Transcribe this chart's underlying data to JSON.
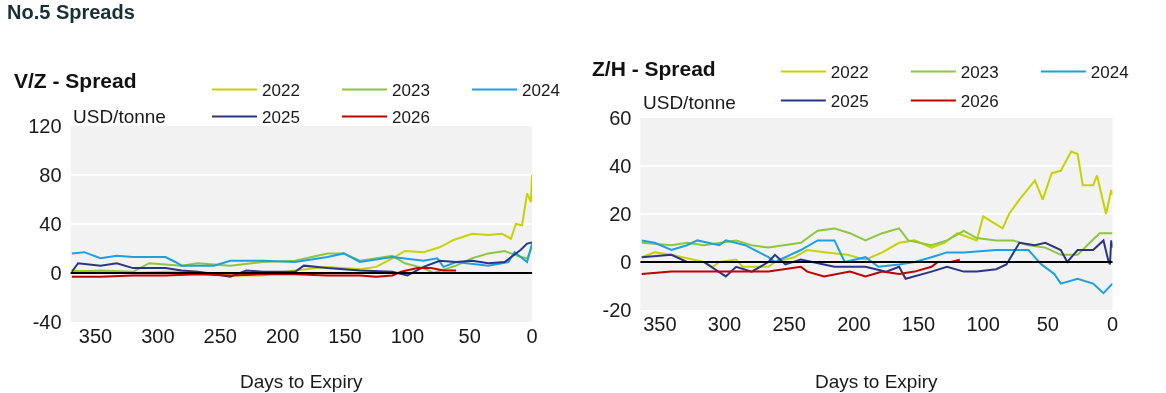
{
  "chart_data": [
    {
      "type": "line",
      "title": "V/Z - Spread",
      "ylabel": "USD/tonne",
      "xlabel": "Days to Expiry",
      "annotations": [
        "No.5 Spreads"
      ],
      "xlim": [
        370,
        0
      ],
      "xticks": [
        350,
        300,
        250,
        200,
        150,
        100,
        50,
        0
      ],
      "ylim": [
        -40,
        120
      ],
      "yticks": [
        120,
        80,
        40,
        0,
        -40
      ],
      "grid": "y",
      "legend": "top",
      "marker": "none",
      "line_style": "solid",
      "ref_lines": [
        {
          "axis": "y",
          "value": 0,
          "color": "#000000"
        }
      ],
      "series": [
        {
          "name": "2022",
          "color": "#c5d300",
          "x": [
            369,
            346,
            320,
            294,
            268,
            242,
            216,
            190,
            164,
            138,
            125,
            112,
            102,
            87,
            74,
            63,
            48,
            35,
            24,
            17,
            13,
            8,
            4,
            1,
            0
          ],
          "values": [
            2,
            1,
            0,
            1,
            1,
            -2,
            -2,
            2,
            5,
            3,
            5,
            12,
            18,
            17,
            21,
            27,
            32,
            31,
            32,
            28,
            40,
            39,
            65,
            58,
            80
          ]
        },
        {
          "name": "2023",
          "color": "#8dc63f",
          "x": [
            369,
            346,
            320,
            307,
            281,
            268,
            242,
            216,
            190,
            164,
            151,
            138,
            112,
            102,
            87,
            79,
            61,
            48,
            35,
            22,
            9,
            4,
            0
          ],
          "values": [
            1,
            2,
            1,
            8,
            6,
            8,
            6,
            9,
            10,
            16,
            16,
            10,
            14,
            8,
            4,
            0,
            6,
            12,
            16,
            18,
            13,
            12,
            21
          ]
        },
        {
          "name": "2024",
          "color": "#1ba1e2",
          "x": [
            369,
            359,
            346,
            333,
            320,
            294,
            286,
            281,
            255,
            242,
            216,
            190,
            164,
            151,
            138,
            112,
            87,
            76,
            71,
            61,
            35,
            19,
            14,
            4,
            0
          ],
          "values": [
            16,
            17,
            12,
            14,
            13,
            13,
            9,
            6,
            6,
            10,
            10,
            9,
            13,
            16,
            9,
            13,
            10,
            12,
            5,
            9,
            6,
            9,
            17,
            9,
            24
          ]
        },
        {
          "name": "2025",
          "color": "#2b3583",
          "x": [
            369,
            364,
            346,
            333,
            320,
            294,
            281,
            268,
            242,
            229,
            216,
            190,
            183,
            164,
            138,
            112,
            100,
            87,
            74,
            61,
            48,
            35,
            22,
            9,
            4,
            0
          ],
          "values": [
            1,
            8,
            6,
            8,
            4,
            4,
            2,
            1,
            -3,
            2,
            1,
            1,
            6,
            4,
            2,
            1,
            -2,
            5,
            10,
            9,
            10,
            8,
            9,
            19,
            24,
            25
          ]
        },
        {
          "name": "2026",
          "color": "#c00000",
          "x": [
            369,
            346,
            320,
            294,
            268,
            242,
            216,
            190,
            164,
            138,
            125,
            112,
            105,
            92,
            81,
            71,
            61
          ],
          "values": [
            -3,
            -3,
            -2,
            -2,
            -1,
            -2,
            -1,
            -1,
            -2,
            -2,
            -3,
            -2,
            1,
            4,
            4,
            2,
            2
          ]
        }
      ]
    },
    {
      "type": "line",
      "title": "Z/H - Spread",
      "ylabel": "USD/tonne",
      "xlabel": "Days to Expiry",
      "xlim": [
        365,
        0
      ],
      "xticks": [
        350,
        300,
        250,
        200,
        150,
        100,
        50,
        0
      ],
      "ylim": [
        -20,
        60
      ],
      "yticks": [
        60,
        40,
        20,
        0,
        -20
      ],
      "grid": "y",
      "legend": "top",
      "marker": "none",
      "line_style": "solid",
      "ref_lines": [
        {
          "axis": "y",
          "value": 0,
          "color": "#000000"
        }
      ],
      "series": [
        {
          "name": "2022",
          "color": "#c5d300",
          "x": [
            364,
            354,
            341,
            316,
            309,
            304,
            291,
            286,
            266,
            261,
            246,
            236,
            221,
            205,
            191,
            178,
            165,
            153,
            140,
            130,
            120,
            105,
            100,
            85,
            80,
            72,
            60,
            54,
            47,
            40,
            32,
            27,
            23,
            15,
            12,
            5,
            1,
            0
          ],
          "values": [
            2,
            4,
            3,
            0,
            -2,
            0,
            1,
            -2,
            -2,
            0,
            2,
            5,
            4,
            3,
            1,
            4,
            8,
            9,
            6,
            8,
            12,
            9,
            19,
            14,
            20,
            26,
            34,
            26,
            37,
            38,
            46,
            45,
            32,
            32,
            36,
            20,
            30,
            28
          ]
        },
        {
          "name": "2023",
          "color": "#8dc63f",
          "x": [
            364,
            341,
            329,
            316,
            291,
            279,
            266,
            241,
            228,
            215,
            203,
            191,
            178,
            165,
            158,
            140,
            128,
            115,
            105,
            90,
            77,
            65,
            52,
            40,
            27,
            10,
            0
          ],
          "values": [
            8,
            7,
            8,
            7,
            9,
            7,
            6,
            8,
            13,
            14,
            12,
            9,
            12,
            14,
            9,
            7,
            9,
            13,
            10,
            9,
            9,
            7,
            6,
            3,
            3,
            12,
            12
          ]
        },
        {
          "name": "2024",
          "color": "#1ba1e2",
          "x": [
            364,
            354,
            341,
            329,
            321,
            304,
            299,
            284,
            266,
            261,
            241,
            228,
            215,
            207,
            191,
            181,
            165,
            153,
            140,
            128,
            115,
            90,
            77,
            65,
            55,
            45,
            40,
            27,
            15,
            7,
            0
          ],
          "values": [
            9,
            8,
            5,
            7,
            9,
            7,
            9,
            7,
            2,
            0,
            5,
            9,
            9,
            0,
            2,
            -2,
            -1,
            0,
            2,
            4,
            4,
            5,
            5,
            5,
            -1,
            -5,
            -9,
            -7,
            -9,
            -13,
            -9
          ]
        },
        {
          "name": "2025",
          "color": "#2b3583",
          "x": [
            364,
            341,
            329,
            316,
            299,
            291,
            279,
            266,
            261,
            253,
            241,
            215,
            191,
            175,
            165,
            160,
            140,
            128,
            115,
            105,
            90,
            82,
            72,
            60,
            52,
            40,
            35,
            27,
            15,
            7,
            3,
            2,
            1,
            0
          ],
          "values": [
            2,
            3,
            0,
            0,
            -6,
            -2,
            -4,
            0,
            3,
            -1,
            1,
            -2,
            -2,
            -4,
            -2,
            -7,
            -4,
            -2,
            -4,
            -4,
            -3,
            -1,
            8,
            7,
            8,
            5,
            0,
            5,
            5,
            9,
            0,
            -1,
            9,
            6
          ]
        },
        {
          "name": "2026",
          "color": "#c00000",
          "x": [
            364,
            341,
            316,
            291,
            266,
            241,
            236,
            223,
            203,
            191,
            178,
            165,
            153,
            140,
            135,
            125,
            118
          ],
          "values": [
            -5,
            -4,
            -4,
            -4,
            -4,
            -2,
            -4,
            -6,
            -4,
            -6,
            -4,
            -5,
            -4,
            -2,
            0,
            0,
            1
          ]
        }
      ]
    }
  ]
}
